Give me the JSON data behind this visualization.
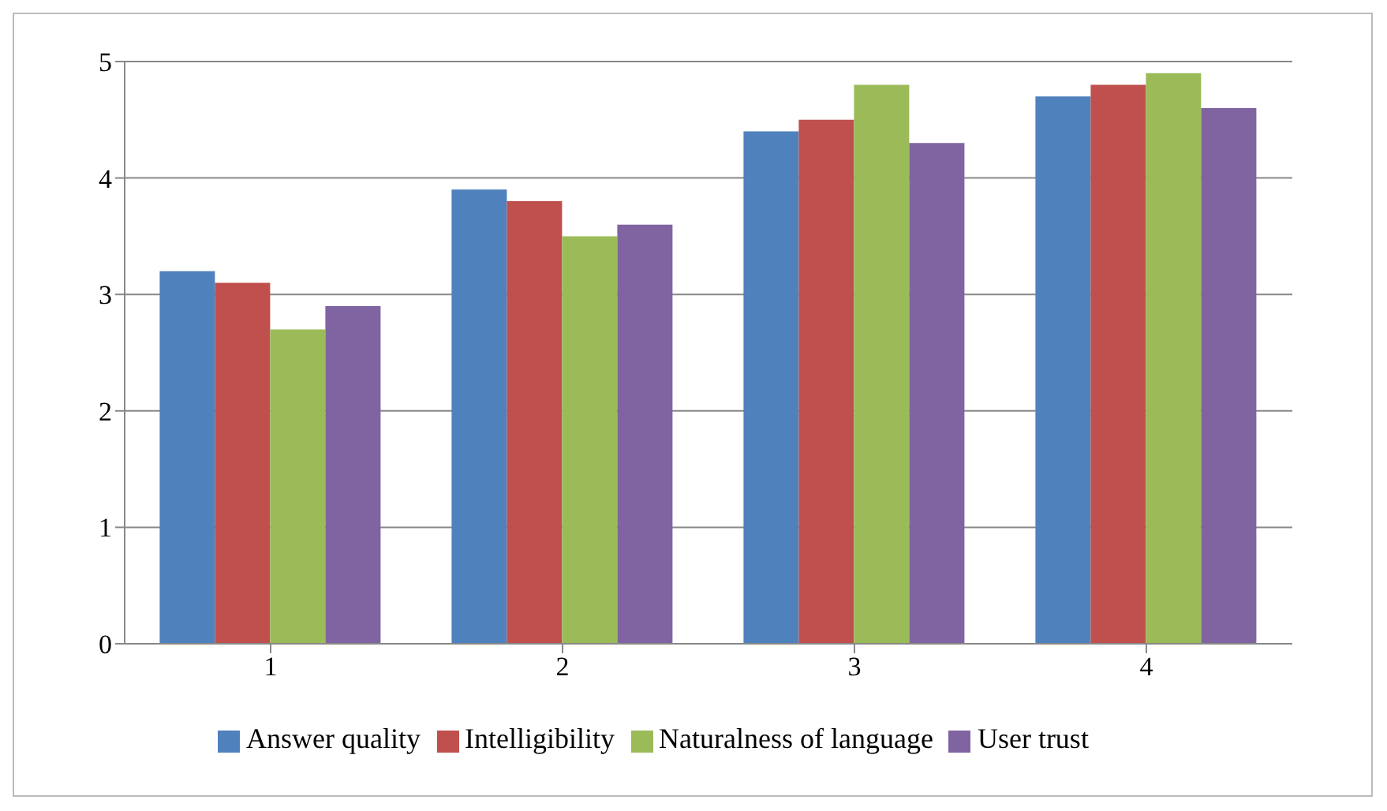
{
  "chart_data": {
    "type": "bar",
    "categories": [
      "1",
      "2",
      "3",
      "4"
    ],
    "series": [
      {
        "name": "Answer quality",
        "color": "#4f81bd",
        "values": [
          3.2,
          3.9,
          4.4,
          4.7
        ]
      },
      {
        "name": "Intelligibility",
        "color": "#c0504d",
        "values": [
          3.1,
          3.8,
          4.5,
          4.8
        ]
      },
      {
        "name": "Naturalness of language",
        "color": "#9bbb59",
        "values": [
          2.7,
          3.5,
          4.8,
          4.9
        ]
      },
      {
        "name": "User trust",
        "color": "#8064a2",
        "values": [
          2.9,
          3.6,
          4.3,
          4.6
        ]
      }
    ],
    "ylim": [
      0,
      5
    ],
    "yticks": [
      0,
      1,
      2,
      3,
      4,
      5
    ],
    "grid": "y",
    "legend": "bottom"
  }
}
